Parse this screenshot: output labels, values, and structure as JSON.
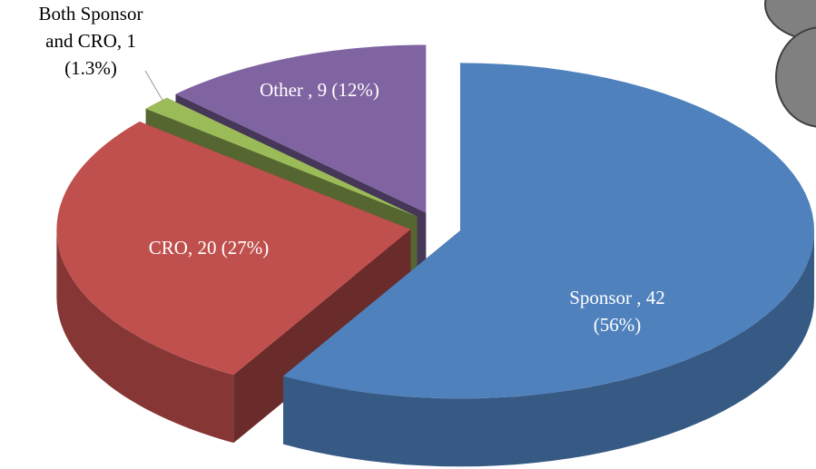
{
  "chart_data": {
    "type": "pie3d",
    "labels": [
      [
        "Sponsor , 42",
        "(56%)"
      ],
      [
        "CRO, 20 (27%)"
      ],
      [
        "Both Sponsor",
        "and CRO, 1",
        "(1.3%)"
      ],
      [
        "Other , 9 (12%)"
      ]
    ],
    "values": [
      42,
      20,
      1,
      9
    ],
    "colors": [
      "#4f81bd",
      "#c0504d",
      "#9bbb59",
      "#8064a2"
    ]
  }
}
